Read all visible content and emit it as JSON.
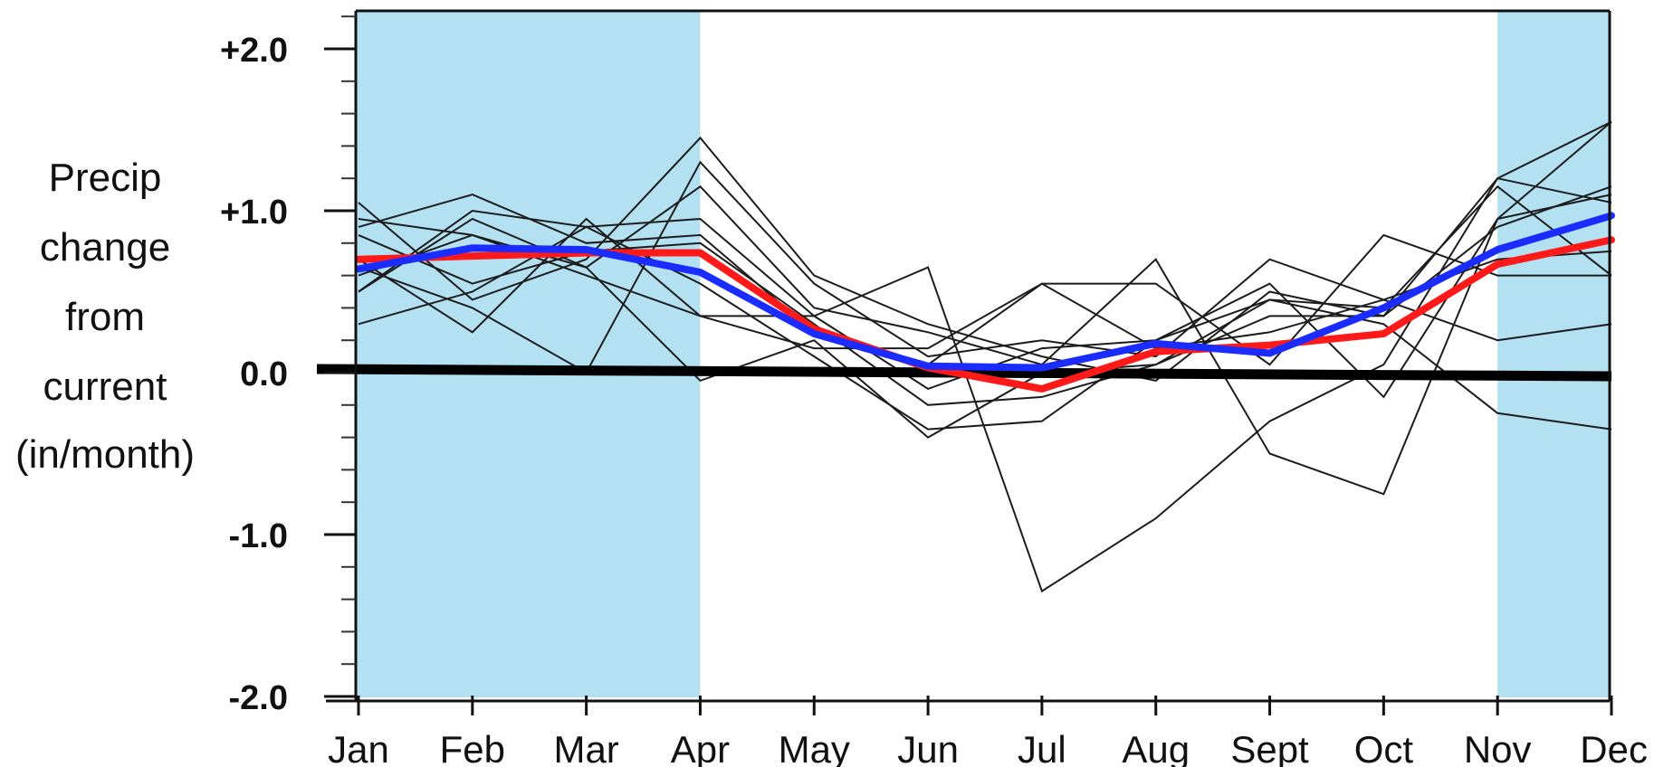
{
  "chart_data": {
    "type": "line",
    "title": "",
    "xlabel": "",
    "ylabel_lines": [
      "Precip",
      "change",
      "from",
      "current",
      "(in/month)"
    ],
    "categories": [
      "Jan",
      "Feb",
      "Mar",
      "Apr",
      "May",
      "Jun",
      "Jul",
      "Aug",
      "Sept",
      "Oct",
      "Nov",
      "Dec"
    ],
    "ylim": [
      -2.0,
      2.2
    ],
    "yticks": [
      {
        "value": 2.0,
        "label": "+2.0"
      },
      {
        "value": 1.0,
        "label": "+1.0"
      },
      {
        "value": 0.0,
        "label": "0.0"
      },
      {
        "value": -1.0,
        "label": "-1.0"
      },
      {
        "value": -2.0,
        "label": "-2.0"
      }
    ],
    "minor_tick_step": 0.2,
    "grid": false,
    "shaded_months": [
      {
        "from": "Jan",
        "to": "Apr"
      },
      {
        "from": "Nov",
        "to": "Dec"
      }
    ],
    "zero_line": true,
    "colors": {
      "shade": "#b3e1f2",
      "model_lines": "#1c1c1c",
      "red_series": "#ff1a1a",
      "blue_series": "#1a2cff",
      "zero_line": "#000000"
    },
    "series": [
      {
        "style": "model",
        "values": [
          1.05,
          0.45,
          0.7,
          1.45,
          0.6,
          0.3,
          0.1,
          -0.05,
          0.5,
          0.35,
          1.2,
          1.55
        ]
      },
      {
        "style": "model",
        "values": [
          0.9,
          1.1,
          0.8,
          0.85,
          0.25,
          0.05,
          0.55,
          0.55,
          0.05,
          0.85,
          0.6,
          0.6
        ]
      },
      {
        "style": "model",
        "values": [
          0.5,
          1.0,
          0.9,
          0.95,
          0.35,
          -0.1,
          0.15,
          0.2,
          0.55,
          -0.15,
          0.95,
          1.1
        ]
      },
      {
        "style": "model",
        "values": [
          0.3,
          0.5,
          0.9,
          0.55,
          0.1,
          -0.35,
          -0.3,
          0.2,
          0.45,
          0.4,
          1.15,
          0.6
        ]
      },
      {
        "style": "model",
        "values": [
          0.7,
          0.25,
          0.95,
          0.35,
          0.35,
          0.65,
          -1.35,
          -0.9,
          -0.3,
          0.05,
          1.2,
          1.05
        ]
      },
      {
        "style": "model",
        "values": [
          0.6,
          0.85,
          0.65,
          1.15,
          0.4,
          0.25,
          0.05,
          0.7,
          -0.5,
          -0.75,
          0.95,
          1.55
        ]
      },
      {
        "style": "model",
        "values": [
          0.65,
          0.4,
          0.0,
          1.3,
          0.55,
          0.1,
          0.2,
          0.1,
          0.7,
          0.45,
          0.2,
          0.3
        ]
      },
      {
        "style": "model",
        "values": [
          0.5,
          0.95,
          0.65,
          -0.05,
          0.2,
          -0.4,
          0.0,
          0.05,
          0.45,
          0.3,
          -0.25,
          -0.35
        ]
      },
      {
        "style": "model",
        "values": [
          0.85,
          0.55,
          0.75,
          0.8,
          0.3,
          -0.2,
          -0.15,
          0.05,
          0.35,
          0.35,
          0.9,
          1.15
        ]
      },
      {
        "style": "model",
        "values": [
          0.95,
          0.85,
          0.6,
          0.35,
          0.15,
          0.15,
          0.55,
          0.15,
          0.25,
          0.45,
          0.7,
          0.75
        ]
      },
      {
        "style": "red",
        "values": [
          0.7,
          0.72,
          0.74,
          0.74,
          0.27,
          0.03,
          -0.1,
          0.13,
          0.17,
          0.24,
          0.67,
          0.82
        ]
      },
      {
        "style": "blue",
        "values": [
          0.64,
          0.77,
          0.76,
          0.62,
          0.24,
          0.04,
          0.03,
          0.18,
          0.12,
          0.4,
          0.76,
          0.97
        ]
      }
    ]
  }
}
